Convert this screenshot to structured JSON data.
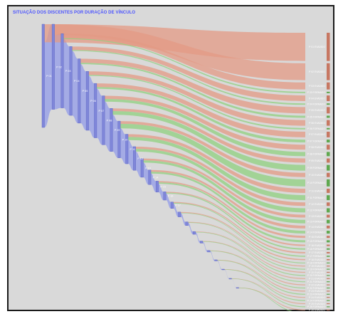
{
  "chart_data": {
    "type": "sankey",
    "title": "SITUAÇÃO DOS DISCENTES POR DURAÇÃO DE VÍNCULO",
    "colors": {
      "background": "#d9d9d9",
      "node": "#7f86d9",
      "node_edge": "#5c64c4",
      "link_evasao": "#e39a84",
      "link_formado": "#8fd07f",
      "link_node_flow": "#9aa2e6",
      "title": "#4b53ff"
    },
    "stages": [
      {
        "label": "P 01",
        "evadidos": 2,
        "formados": 0
      },
      {
        "label": "P 02",
        "evadidos": 1.2,
        "formados": 0
      },
      {
        "label": "P 03",
        "evadidos": 0.5,
        "formados": 0.1
      },
      {
        "label": "P 04",
        "evadidos": 0.4,
        "formados": 0.1
      },
      {
        "label": "P 05",
        "evadidos": 0.45,
        "formados": 0.15
      },
      {
        "label": "P 06",
        "evadidos": 0.4,
        "formados": 0.1
      },
      {
        "label": "P 07",
        "evadidos": 0.4,
        "formados": 0.2
      },
      {
        "label": "P 08",
        "evadidos": 0.35,
        "formados": 0.3
      },
      {
        "label": "P 09",
        "evadidos": 0.3,
        "formados": 0.4
      },
      {
        "label": "P 10",
        "evadidos": 0.3,
        "formados": 0.5
      },
      {
        "label": "P 11",
        "evadidos": 0.3,
        "formados": 0.35
      },
      {
        "label": "P 12",
        "evadidos": 0.25,
        "formados": 0.3
      },
      {
        "label": "P 13",
        "evadidos": 0.2,
        "formados": 0.25
      },
      {
        "label": "P 14",
        "evadidos": 0.2,
        "formados": 0.2
      },
      {
        "label": "P 15",
        "evadidos": 0.15,
        "formados": 0.15
      },
      {
        "label": "P 16",
        "evadidos": 0.1,
        "formados": 0.1
      },
      {
        "label": "P 17",
        "evadidos": 0.1,
        "formados": 0.08
      },
      {
        "label": "P 18",
        "evadidos": 0.08,
        "formados": 0.05
      },
      {
        "label": "P 19",
        "evadidos": 0.06,
        "formados": 0.04
      },
      {
        "label": "P 20",
        "evadidos": 0.05,
        "formados": 0.03
      },
      {
        "label": "P 21",
        "evadidos": 0.04,
        "formados": 0.02
      },
      {
        "label": "P 22",
        "evadidos": 0.03,
        "formados": 0.02
      },
      {
        "label": "P 23",
        "evadidos": 0.03,
        "formados": 0.01
      },
      {
        "label": "P 24",
        "evadidos": 0.02,
        "formados": 0.01
      },
      {
        "label": "P 25",
        "evadidos": 0.02,
        "formados": 0.01
      },
      {
        "label": "P 26",
        "evadidos": 0.01,
        "formados": 0.01
      }
    ],
    "outcome_suffix": {
      "evadido": "EVADIDO",
      "formado": "FORMADO"
    },
    "grid": false,
    "legend": "none"
  }
}
